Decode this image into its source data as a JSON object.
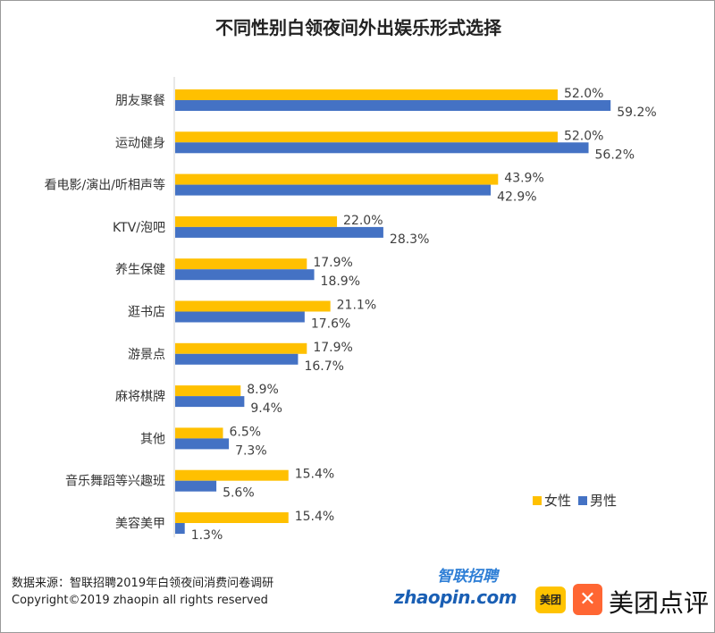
{
  "chart_data": {
    "type": "bar",
    "orientation": "horizontal",
    "title": "不同性别白领夜间外出娱乐形式选择",
    "categories": [
      "朋友聚餐",
      "运动健身",
      "看电影/演出/听相声等",
      "KTV/泡吧",
      "养生保健",
      "逛书店",
      "游景点",
      "麻将棋牌",
      "其他",
      "音乐舞蹈等兴趣班",
      "美容美甲"
    ],
    "series": [
      {
        "name": "女性",
        "color": "#FFC000",
        "values": [
          52.0,
          52.0,
          43.9,
          22.0,
          17.9,
          21.1,
          17.9,
          8.9,
          6.5,
          15.4,
          15.4
        ]
      },
      {
        "name": "男性",
        "color": "#4472C4",
        "values": [
          59.2,
          56.2,
          42.9,
          28.3,
          18.9,
          17.6,
          16.7,
          9.4,
          7.3,
          5.6,
          1.3
        ]
      }
    ],
    "value_suffix": "%",
    "xlim": [
      0,
      60
    ],
    "legend_position": "bottom-right",
    "grid": false
  },
  "footer": {
    "source": "数据来源：智联招聘2019年白领夜间消费问卷调研",
    "copyright": "Copyright©2019 zhaopin all rights reserved"
  },
  "logos": {
    "zhaopin_cn": "智联招聘",
    "zhaopin_en": "zhaopin.com",
    "meituan": "美团",
    "dianping": "美团点评"
  }
}
